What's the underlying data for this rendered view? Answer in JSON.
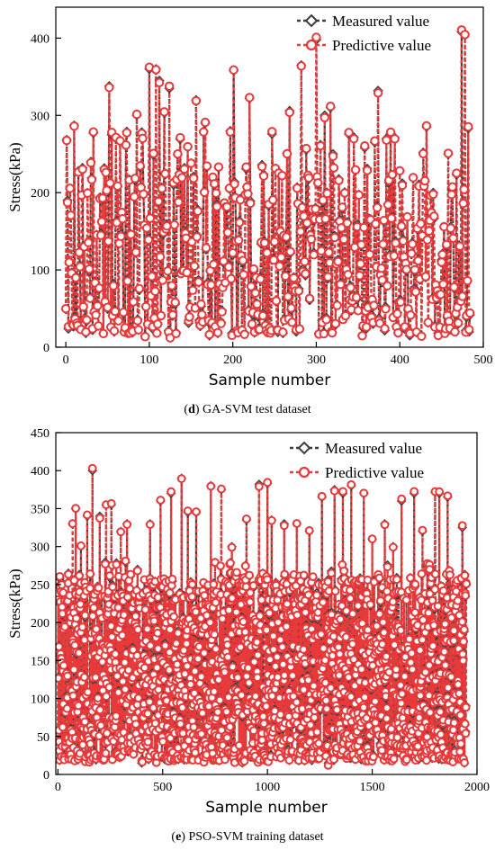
{
  "chart_data": [
    {
      "id": "chart-d",
      "type": "line",
      "caption_letter": "d",
      "caption_text": "GA-SVM test dataset",
      "xlabel": "Sample number",
      "ylabel": "Stress(kPa)",
      "xlim": [
        -12,
        500
      ],
      "ylim": [
        0,
        440
      ],
      "xticks": [
        0,
        100,
        200,
        300,
        400,
        500
      ],
      "yticks": [
        0,
        100,
        200,
        300,
        400
      ],
      "grid": false,
      "legend_position": "top-right",
      "series": [
        {
          "name": "Measured value",
          "color": "#3d3d3d",
          "marker": "diamond",
          "line": "dash"
        },
        {
          "name": "Predictive value",
          "color": "#e8393b",
          "marker": "circle",
          "line": "dash"
        }
      ],
      "n_points": 485,
      "x_step": 1,
      "seed": 7,
      "approx_mean": 105,
      "peaks": [
        [
          2,
          190
        ],
        [
          5,
          205
        ],
        [
          10,
          287
        ],
        [
          15,
          228
        ],
        [
          22,
          130
        ],
        [
          30,
          240
        ],
        [
          33,
          277
        ],
        [
          40,
          75
        ],
        [
          52,
          338
        ],
        [
          55,
          275
        ],
        [
          60,
          270
        ],
        [
          65,
          268
        ],
        [
          72,
          262
        ],
        [
          85,
          300
        ],
        [
          92,
          270
        ],
        [
          100,
          360
        ],
        [
          108,
          360
        ],
        [
          112,
          345
        ],
        [
          118,
          303
        ],
        [
          124,
          335
        ],
        [
          135,
          188
        ],
        [
          150,
          238
        ],
        [
          156,
          320
        ],
        [
          167,
          290
        ],
        [
          178,
          210
        ],
        [
          190,
          185
        ],
        [
          197,
          280
        ],
        [
          201,
          358
        ],
        [
          220,
          322
        ],
        [
          235,
          236
        ],
        [
          248,
          190
        ],
        [
          255,
          225
        ],
        [
          268,
          306
        ],
        [
          282,
          365
        ],
        [
          300,
          398
        ],
        [
          305,
          262
        ],
        [
          310,
          300
        ],
        [
          317,
          310
        ],
        [
          320,
          250
        ],
        [
          358,
          258
        ],
        [
          370,
          265
        ],
        [
          374,
          332
        ],
        [
          384,
          270
        ],
        [
          394,
          271
        ],
        [
          400,
          228
        ],
        [
          428,
          252
        ],
        [
          432,
          285
        ],
        [
          440,
          200
        ],
        [
          458,
          250
        ],
        [
          474,
          408
        ],
        [
          478,
          405
        ],
        [
          482,
          283
        ],
        [
          485,
          150
        ]
      ],
      "lows": [
        [
          8,
          30
        ],
        [
          18,
          25
        ],
        [
          45,
          18
        ],
        [
          58,
          20
        ],
        [
          75,
          20
        ],
        [
          95,
          15
        ],
        [
          110,
          30
        ],
        [
          125,
          15
        ],
        [
          160,
          35
        ],
        [
          172,
          15
        ],
        [
          182,
          18
        ],
        [
          205,
          20
        ],
        [
          232,
          25
        ],
        [
          248,
          25
        ],
        [
          260,
          18
        ],
        [
          276,
          20
        ],
        [
          300,
          15
        ],
        [
          318,
          20
        ],
        [
          355,
          15
        ],
        [
          368,
          30
        ],
        [
          412,
          15
        ],
        [
          426,
          15
        ],
        [
          446,
          18
        ],
        [
          455,
          25
        ],
        [
          470,
          30
        ],
        [
          483,
          20
        ]
      ]
    },
    {
      "id": "chart-e",
      "type": "line",
      "caption_letter": "e",
      "caption_text": "PSO-SVM training dataset",
      "xlabel": "Sample number",
      "ylabel": "Stress(kPa)",
      "xlim": [
        -10,
        2000
      ],
      "ylim": [
        0,
        450
      ],
      "xticks": [
        0,
        500,
        1000,
        1500,
        2000
      ],
      "yticks": [
        0,
        50,
        100,
        150,
        200,
        250,
        300,
        350,
        400,
        450
      ],
      "grid": false,
      "legend_position": "top-right",
      "series": [
        {
          "name": "Measured value",
          "color": "#3d3d3d",
          "marker": "diamond",
          "line": "dash"
        },
        {
          "name": "Predictive value",
          "color": "#e8393b",
          "marker": "circle",
          "line": "dash"
        }
      ],
      "n_points": 1950,
      "x_step": 1,
      "seed": 13,
      "approx_mean": 120,
      "peaks": [
        [
          10,
          250
        ],
        [
          50,
          265
        ],
        [
          70,
          330
        ],
        [
          85,
          350
        ],
        [
          110,
          300
        ],
        [
          140,
          340
        ],
        [
          165,
          400
        ],
        [
          200,
          340
        ],
        [
          230,
          355
        ],
        [
          255,
          355
        ],
        [
          300,
          320
        ],
        [
          330,
          330
        ],
        [
          380,
          270
        ],
        [
          440,
          330
        ],
        [
          490,
          360
        ],
        [
          540,
          370
        ],
        [
          590,
          390
        ],
        [
          620,
          345
        ],
        [
          660,
          345
        ],
        [
          730,
          380
        ],
        [
          780,
          375
        ],
        [
          830,
          300
        ],
        [
          900,
          335
        ],
        [
          960,
          382
        ],
        [
          1000,
          383
        ],
        [
          1020,
          335
        ],
        [
          1080,
          330
        ],
        [
          1140,
          330
        ],
        [
          1200,
          320
        ],
        [
          1260,
          365
        ],
        [
          1320,
          375
        ],
        [
          1360,
          370
        ],
        [
          1400,
          380
        ],
        [
          1460,
          370
        ],
        [
          1500,
          310
        ],
        [
          1560,
          330
        ],
        [
          1600,
          300
        ],
        [
          1640,
          360
        ],
        [
          1700,
          370
        ],
        [
          1740,
          320
        ],
        [
          1800,
          372
        ],
        [
          1820,
          370
        ],
        [
          1860,
          365
        ],
        [
          1900,
          250
        ],
        [
          1930,
          325
        ]
      ],
      "lows": [
        [
          30,
          20
        ],
        [
          150,
          18
        ],
        [
          260,
          20
        ],
        [
          400,
          15
        ],
        [
          600,
          20
        ],
        [
          770,
          18
        ],
        [
          880,
          15
        ],
        [
          1000,
          20
        ],
        [
          1150,
          18
        ],
        [
          1290,
          15
        ],
        [
          1420,
          20
        ],
        [
          1560,
          15
        ],
        [
          1700,
          18
        ],
        [
          1850,
          20
        ],
        [
          1940,
          15
        ]
      ]
    }
  ]
}
